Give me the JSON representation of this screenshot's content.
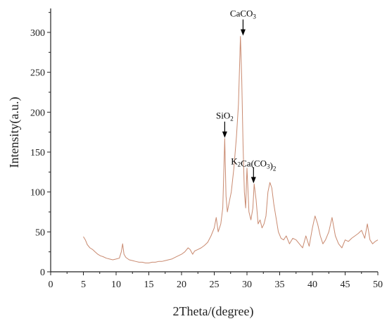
{
  "chart_data": {
    "type": "line",
    "title": "",
    "xlabel": "2Theta/(degree)",
    "ylabel": "Intensity(a.u.)",
    "xlim": [
      0,
      50
    ],
    "ylim": [
      0,
      330
    ],
    "xticks": [
      0,
      5,
      10,
      15,
      20,
      25,
      30,
      35,
      40,
      45,
      50
    ],
    "yticks": [
      0,
      50,
      100,
      150,
      200,
      250,
      300
    ],
    "grid": false,
    "line_color": "#c98a70",
    "series": [
      {
        "x": [
          5.0,
          5.3,
          5.6,
          6.0,
          6.4,
          6.8,
          7.2,
          7.6,
          8.0,
          8.5,
          9.0,
          9.5,
          10.0,
          10.5,
          10.8,
          11.0,
          11.2,
          11.5,
          12.0,
          12.5,
          13.0,
          13.5,
          14.0,
          14.5,
          15.0,
          15.5,
          16.0,
          16.5,
          17.0,
          17.5,
          18.0,
          18.5,
          19.0,
          19.5,
          20.0,
          20.5,
          21.0,
          21.3,
          21.7,
          22.0,
          22.5,
          23.0,
          23.5,
          24.0,
          24.5,
          25.0,
          25.3,
          25.6,
          26.0,
          26.3,
          26.6,
          26.8,
          27.0,
          27.3,
          27.6,
          28.0,
          28.4,
          28.7,
          29.0,
          29.2,
          29.4,
          29.6,
          29.8,
          30.0,
          30.3,
          30.6,
          30.9,
          31.1,
          31.4,
          31.7,
          32.0,
          32.3,
          32.6,
          32.9,
          33.2,
          33.5,
          33.8,
          34.1,
          34.4,
          34.8,
          35.2,
          35.6,
          36.0,
          36.5,
          37.0,
          37.5,
          38.0,
          38.5,
          39.0,
          39.5,
          40.0,
          40.4,
          40.8,
          41.2,
          41.6,
          42.0,
          42.5,
          43.0,
          43.5,
          44.0,
          44.5,
          45.0,
          45.5,
          46.0,
          46.5,
          47.0,
          47.5,
          48.0,
          48.4,
          48.8,
          49.2,
          49.6,
          50.0
        ],
        "y": [
          44,
          40,
          34,
          30,
          28,
          25,
          22,
          20,
          19,
          17,
          16,
          15,
          16,
          17,
          25,
          35,
          22,
          18,
          15,
          14,
          13,
          12,
          12,
          11,
          11,
          12,
          12,
          13,
          13,
          14,
          15,
          16,
          18,
          20,
          22,
          25,
          30,
          28,
          22,
          26,
          28,
          30,
          33,
          37,
          45,
          55,
          68,
          50,
          60,
          80,
          167,
          95,
          75,
          88,
          100,
          130,
          170,
          210,
          295,
          240,
          160,
          100,
          80,
          130,
          75,
          65,
          80,
          110,
          90,
          60,
          65,
          55,
          60,
          70,
          100,
          112,
          105,
          85,
          70,
          50,
          42,
          40,
          45,
          35,
          42,
          40,
          35,
          30,
          45,
          32,
          55,
          70,
          60,
          45,
          35,
          40,
          50,
          68,
          45,
          35,
          30,
          40,
          38,
          42,
          45,
          48,
          52,
          42,
          60,
          40,
          35,
          38,
          40
        ],
        "color": "#c98a70"
      }
    ],
    "annotations": [
      {
        "base": "SiO",
        "sub": "2",
        "rest": "",
        "sub2": "",
        "x": 26.6,
        "y": 167
      },
      {
        "base": "CaCO",
        "sub": "3",
        "rest": "",
        "sub2": "",
        "x": 29.4,
        "y": 295
      },
      {
        "base": "K",
        "sub": "2",
        "rest": "Ca(CO",
        "sub2": "3",
        "rest2": ")",
        "sub3": "2",
        "x": 31.0,
        "y": 110
      }
    ]
  }
}
